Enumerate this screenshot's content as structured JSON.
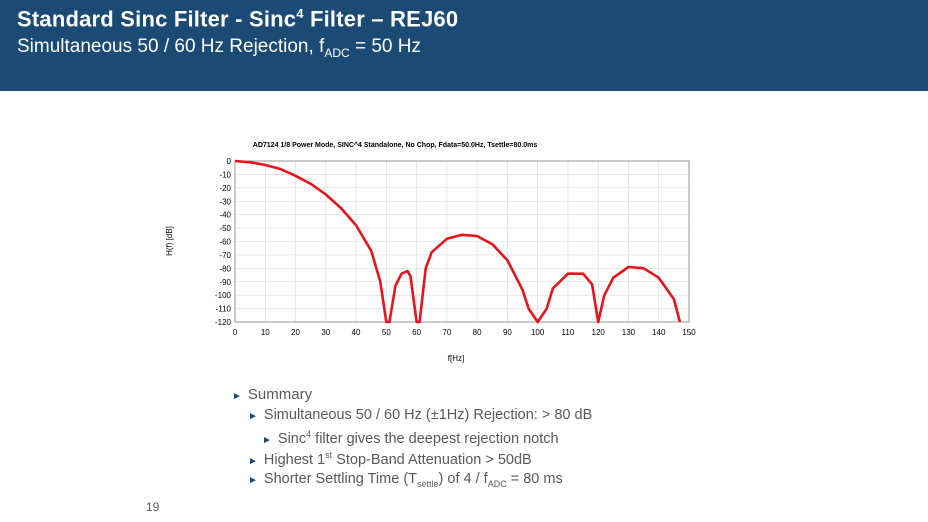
{
  "header": {
    "title_pre": "Standard Sinc Filter - Sinc",
    "title_sup": "4",
    "title_post": " Filter – REJ60",
    "subtitle_pre": "Simultaneous 50 / 60 Hz Rejection, f",
    "subtitle_sub": "ADC",
    "subtitle_post": " = 50 Hz"
  },
  "colors": {
    "header_bg": "#1b4a74",
    "curve": "#e8141c"
  },
  "chart_data": {
    "type": "line",
    "title": "AD7124  1/8 Power Mode, SINC^4 Standalone, No Chop, Fdata=50.0Hz, Tsettle=80.0ms",
    "xlabel": "f[Hz]",
    "ylabel": "H(f) [dB]",
    "xlim": [
      0,
      150
    ],
    "ylim": [
      -120,
      0
    ],
    "xticks": [
      "0",
      "10",
      "20",
      "30",
      "40",
      "50",
      "60",
      "70",
      "80",
      "90",
      "100",
      "110",
      "120",
      "130",
      "140",
      "150"
    ],
    "yticks": [
      "0",
      "-10",
      "-20",
      "-30",
      "-40",
      "-50",
      "-60",
      "-70",
      "-80",
      "-90",
      "-100",
      "-110",
      "-120"
    ],
    "grid": true,
    "series": [
      {
        "x": [
          0,
          5,
          10,
          15,
          20,
          25,
          30,
          35,
          40,
          45,
          48,
          50,
          51,
          53,
          55,
          57,
          58,
          60,
          61,
          63,
          65,
          70,
          75,
          80,
          85,
          90,
          95,
          97,
          100,
          103,
          105,
          110,
          115,
          118,
          120,
          122,
          125,
          130,
          135,
          140,
          145,
          147
        ],
        "y": [
          0,
          -1,
          -3,
          -6,
          -11,
          -17,
          -25,
          -35,
          -48,
          -67,
          -90,
          -120,
          -120,
          -93,
          -84,
          -82,
          -86,
          -120,
          -120,
          -80,
          -68,
          -58,
          -55,
          -56,
          -62,
          -74,
          -96,
          -110,
          -120,
          -110,
          -95,
          -84,
          -84,
          -92,
          -120,
          -100,
          -87,
          -79,
          -80,
          -87,
          -103,
          -120
        ]
      }
    ]
  },
  "summary": {
    "heading": "Summary",
    "item1": "Simultaneous 50 / 60 Hz (±1Hz) Rejection:  > 80 dB",
    "item1a_pre": "Sinc",
    "item1a_sup": "4",
    "item1a_post": " filter gives the deepest rejection notch",
    "item2_pre": "Highest 1",
    "item2_sup": "st",
    "item2_post": " Stop-Band Attenuation > 50dB",
    "item3_pre": "Shorter Settling Time (T",
    "item3_sub": "settle",
    "item3_mid": ") of 4 / f",
    "item3_sub2": "ADC",
    "item3_post": " = 80 ms"
  },
  "page_number": "19"
}
